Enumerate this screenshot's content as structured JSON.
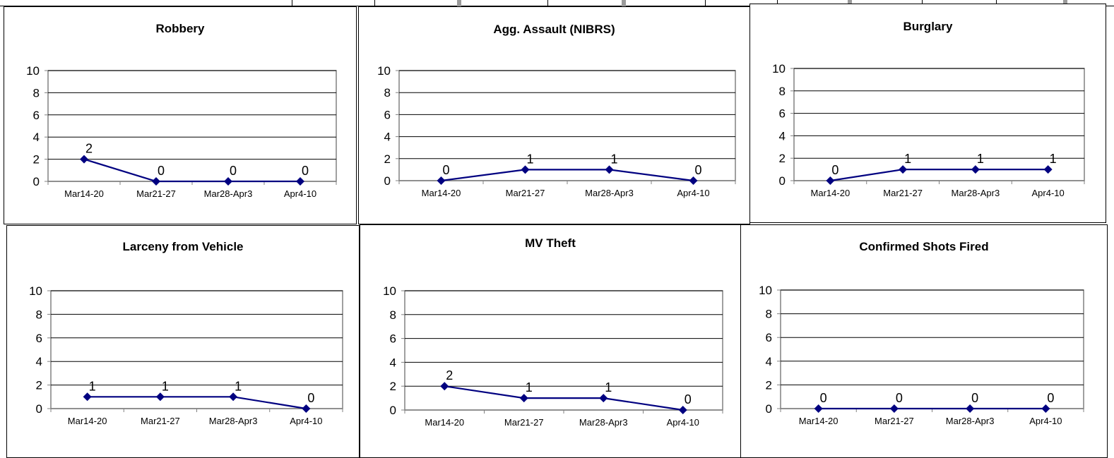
{
  "colors": {
    "line": "#000080",
    "marker": "#000080",
    "grid": "#000000",
    "axis": "#808080",
    "text": "#000000"
  },
  "chart_data": [
    {
      "type": "line",
      "title": "Robbery",
      "categories": [
        "Mar14-20",
        "Mar21-27",
        "Mar28-Apr3",
        "Apr4-10"
      ],
      "values": [
        2,
        0,
        0,
        0
      ],
      "ylim": [
        0,
        10
      ],
      "yticks": [
        "0",
        "2",
        "4",
        "6",
        "8",
        "10"
      ],
      "grid": true,
      "legend": "none"
    },
    {
      "type": "line",
      "title": "Agg. Assault (NIBRS)",
      "categories": [
        "Mar14-20",
        "Mar21-27",
        "Mar28-Apr3",
        "Apr4-10"
      ],
      "values": [
        0,
        1,
        1,
        0
      ],
      "ylim": [
        0,
        10
      ],
      "yticks": [
        "0",
        "2",
        "4",
        "6",
        "8",
        "10"
      ],
      "grid": true,
      "legend": "none"
    },
    {
      "type": "line",
      "title": "Burglary",
      "categories": [
        "Mar14-20",
        "Mar21-27",
        "Mar28-Apr3",
        "Apr4-10"
      ],
      "values": [
        0,
        1,
        1,
        1
      ],
      "ylim": [
        0,
        10
      ],
      "yticks": [
        "0",
        "2",
        "4",
        "6",
        "8",
        "10"
      ],
      "grid": true,
      "legend": "none"
    },
    {
      "type": "line",
      "title": "Larceny from Vehicle",
      "categories": [
        "Mar14-20",
        "Mar21-27",
        "Mar28-Apr3",
        "Apr4-10"
      ],
      "values": [
        1,
        1,
        1,
        0
      ],
      "ylim": [
        0,
        10
      ],
      "yticks": [
        "0",
        "2",
        "4",
        "6",
        "8",
        "10"
      ],
      "grid": true,
      "legend": "none"
    },
    {
      "type": "line",
      "title": "MV Theft",
      "categories": [
        "Mar14-20",
        "Mar21-27",
        "Mar28-Apr3",
        "Apr4-10"
      ],
      "values": [
        2,
        1,
        1,
        0
      ],
      "ylim": [
        0,
        10
      ],
      "yticks": [
        "0",
        "2",
        "4",
        "6",
        "8",
        "10"
      ],
      "grid": true,
      "legend": "none"
    },
    {
      "type": "line",
      "title": "Confirmed Shots Fired",
      "categories": [
        "Mar14-20",
        "Mar21-27",
        "Mar28-Apr3",
        "Apr4-10"
      ],
      "values": [
        0,
        0,
        0,
        0
      ],
      "ylim": [
        0,
        10
      ],
      "yticks": [
        "0",
        "2",
        "4",
        "6",
        "8",
        "10"
      ],
      "grid": true,
      "legend": "none"
    }
  ]
}
